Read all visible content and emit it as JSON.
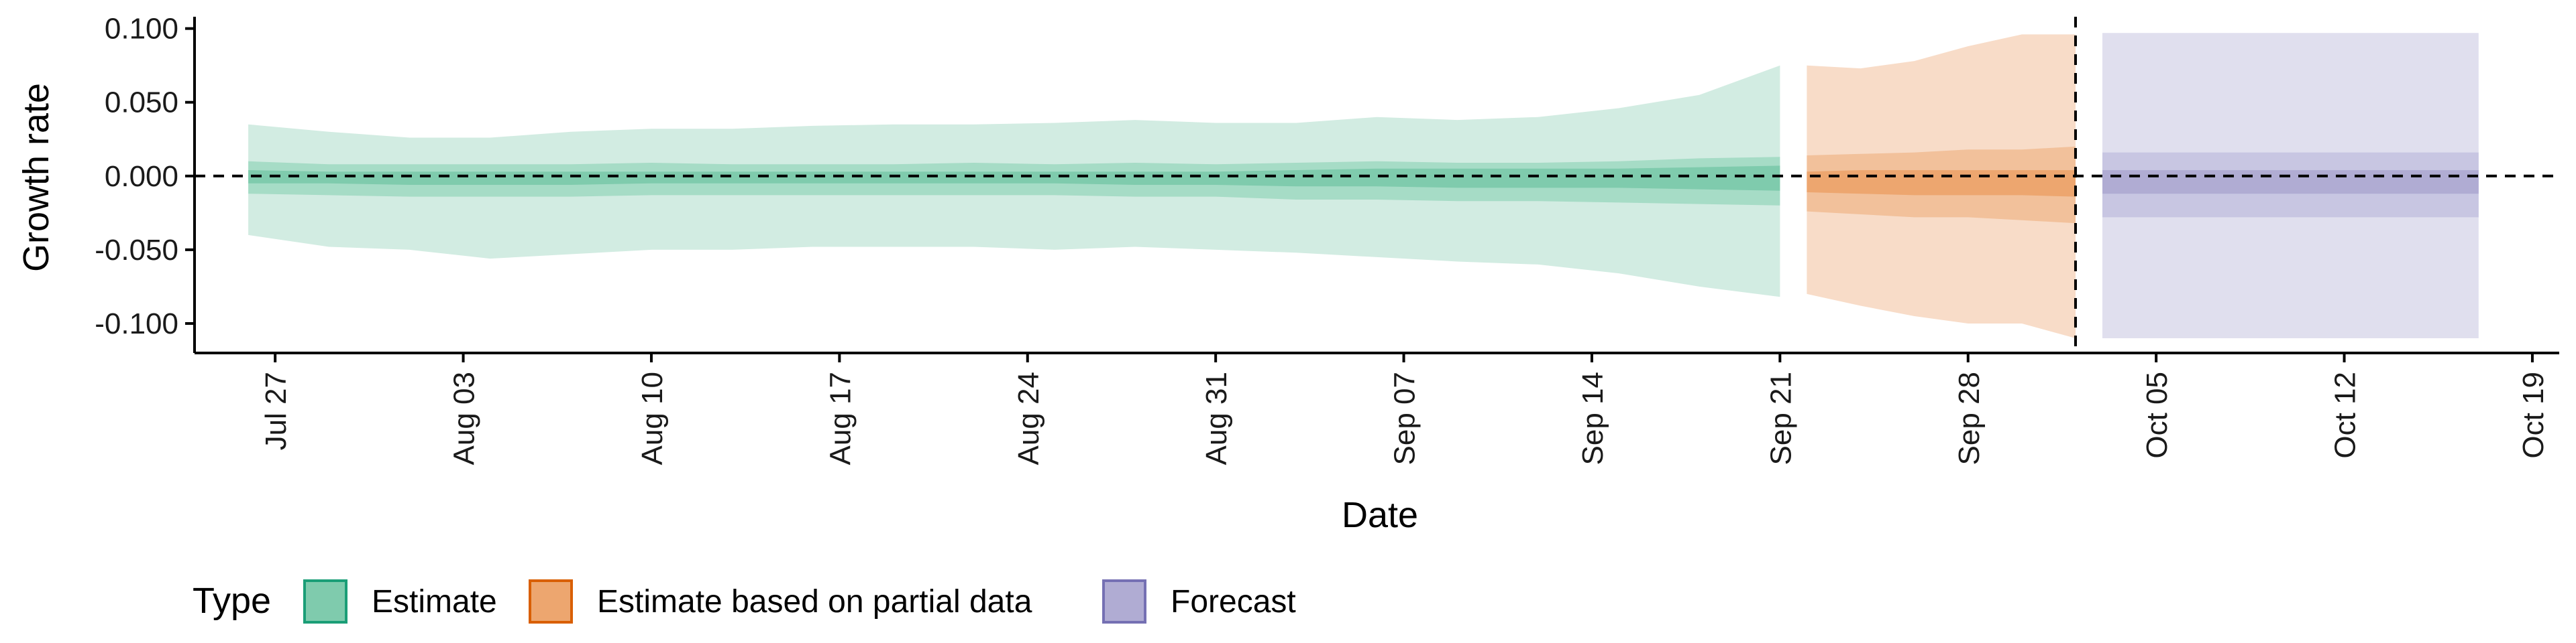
{
  "chart_data": {
    "type": "area",
    "xlabel": "Date",
    "ylabel": "Growth rate",
    "xlim": [
      "2020-07-24",
      "2020-10-20"
    ],
    "ylim": [
      -0.12,
      0.108
    ],
    "x_ticks": [
      {
        "date": "2020-07-27",
        "label": "Jul 27"
      },
      {
        "date": "2020-08-03",
        "label": "Aug 03"
      },
      {
        "date": "2020-08-10",
        "label": "Aug 10"
      },
      {
        "date": "2020-08-17",
        "label": "Aug 17"
      },
      {
        "date": "2020-08-24",
        "label": "Aug 24"
      },
      {
        "date": "2020-08-31",
        "label": "Aug 31"
      },
      {
        "date": "2020-09-07",
        "label": "Sep 07"
      },
      {
        "date": "2020-09-14",
        "label": "Sep 14"
      },
      {
        "date": "2020-09-21",
        "label": "Sep 21"
      },
      {
        "date": "2020-09-28",
        "label": "Sep 28"
      },
      {
        "date": "2020-10-05",
        "label": "Oct 05"
      },
      {
        "date": "2020-10-12",
        "label": "Oct 12"
      },
      {
        "date": "2020-10-19",
        "label": "Oct 19"
      }
    ],
    "y_ticks": [
      {
        "value": 0.1,
        "label": "0.100"
      },
      {
        "value": 0.05,
        "label": "0.050"
      },
      {
        "value": 0.0,
        "label": "0.000"
      },
      {
        "value": -0.05,
        "label": "-0.050"
      },
      {
        "value": -0.1,
        "label": "-0.100"
      }
    ],
    "reference_lines": {
      "horizontal_y": 0.0,
      "vertical_date": "2020-10-02"
    },
    "legend": {
      "title": "Type",
      "position": "bottom",
      "entries": [
        {
          "label": "Estimate",
          "fill": "#7fcbad",
          "border": "#1b9e77"
        },
        {
          "label": "Estimate based on partial data",
          "fill": "#eda66f",
          "border": "#d95f02"
        },
        {
          "label": "Forecast",
          "fill": "#b0acd3",
          "border": "#7570b3"
        }
      ]
    },
    "series": [
      {
        "name": "Estimate",
        "colors": {
          "outer": "#d2ece2",
          "mid": "#a6dcc6",
          "inner": "#7fcbad"
        },
        "x": [
          "2020-07-26",
          "2020-07-29",
          "2020-08-01",
          "2020-08-04",
          "2020-08-07",
          "2020-08-10",
          "2020-08-13",
          "2020-08-16",
          "2020-08-19",
          "2020-08-22",
          "2020-08-25",
          "2020-08-28",
          "2020-08-31",
          "2020-09-03",
          "2020-09-06",
          "2020-09-09",
          "2020-09-12",
          "2020-09-15",
          "2020-09-18",
          "2020-09-21"
        ],
        "outer_upper": [
          0.035,
          0.03,
          0.026,
          0.026,
          0.03,
          0.032,
          0.032,
          0.034,
          0.035,
          0.035,
          0.036,
          0.038,
          0.036,
          0.036,
          0.04,
          0.038,
          0.04,
          0.046,
          0.055,
          0.075
        ],
        "outer_lower": [
          -0.04,
          -0.048,
          -0.05,
          -0.056,
          -0.053,
          -0.05,
          -0.05,
          -0.048,
          -0.048,
          -0.048,
          -0.05,
          -0.048,
          -0.05,
          -0.052,
          -0.055,
          -0.058,
          -0.06,
          -0.066,
          -0.075,
          -0.082
        ],
        "mid_upper": [
          0.01,
          0.008,
          0.008,
          0.008,
          0.008,
          0.009,
          0.008,
          0.008,
          0.008,
          0.009,
          0.008,
          0.009,
          0.008,
          0.009,
          0.01,
          0.009,
          0.009,
          0.01,
          0.012,
          0.013
        ],
        "mid_lower": [
          -0.012,
          -0.013,
          -0.014,
          -0.014,
          -0.014,
          -0.013,
          -0.013,
          -0.013,
          -0.013,
          -0.013,
          -0.013,
          -0.014,
          -0.014,
          -0.016,
          -0.016,
          -0.017,
          -0.017,
          -0.018,
          -0.019,
          -0.02
        ],
        "inner_upper": [
          0.004,
          0.003,
          0.003,
          0.003,
          0.003,
          0.003,
          0.003,
          0.003,
          0.003,
          0.003,
          0.003,
          0.003,
          0.003,
          0.004,
          0.005,
          0.005,
          0.005,
          0.005,
          0.006,
          0.007
        ],
        "inner_lower": [
          -0.005,
          -0.005,
          -0.006,
          -0.006,
          -0.006,
          -0.005,
          -0.005,
          -0.005,
          -0.005,
          -0.005,
          -0.005,
          -0.006,
          -0.006,
          -0.007,
          -0.007,
          -0.008,
          -0.008,
          -0.008,
          -0.009,
          -0.01
        ]
      },
      {
        "name": "Estimate based on partial data",
        "colors": {
          "outer": "#f8dcc8",
          "mid": "#f2c19b",
          "inner": "#eda66f"
        },
        "x": [
          "2020-09-22",
          "2020-09-24",
          "2020-09-26",
          "2020-09-28",
          "2020-09-30",
          "2020-10-02"
        ],
        "outer_upper": [
          0.075,
          0.073,
          0.078,
          0.088,
          0.096,
          0.096
        ],
        "outer_lower": [
          -0.08,
          -0.088,
          -0.095,
          -0.1,
          -0.1,
          -0.11
        ],
        "mid_upper": [
          0.014,
          0.015,
          0.016,
          0.018,
          0.018,
          0.02
        ],
        "mid_lower": [
          -0.024,
          -0.026,
          -0.028,
          -0.028,
          -0.03,
          -0.032
        ],
        "inner_upper": [
          0.003,
          0.004,
          0.004,
          0.004,
          0.004,
          0.004
        ],
        "inner_lower": [
          -0.011,
          -0.012,
          -0.013,
          -0.013,
          -0.013,
          -0.014
        ]
      },
      {
        "name": "Forecast",
        "colors": {
          "outer": "#e0dfee",
          "mid": "#c8c6e2",
          "inner": "#b0acd3"
        },
        "x": [
          "2020-10-03",
          "2020-10-17"
        ],
        "outer_upper": [
          0.097,
          0.097
        ],
        "outer_lower": [
          -0.11,
          -0.11
        ],
        "mid_upper": [
          0.016,
          0.016
        ],
        "mid_lower": [
          -0.028,
          -0.028
        ],
        "inner_upper": [
          0.004,
          0.004
        ],
        "inner_lower": [
          -0.012,
          -0.012
        ]
      }
    ]
  }
}
